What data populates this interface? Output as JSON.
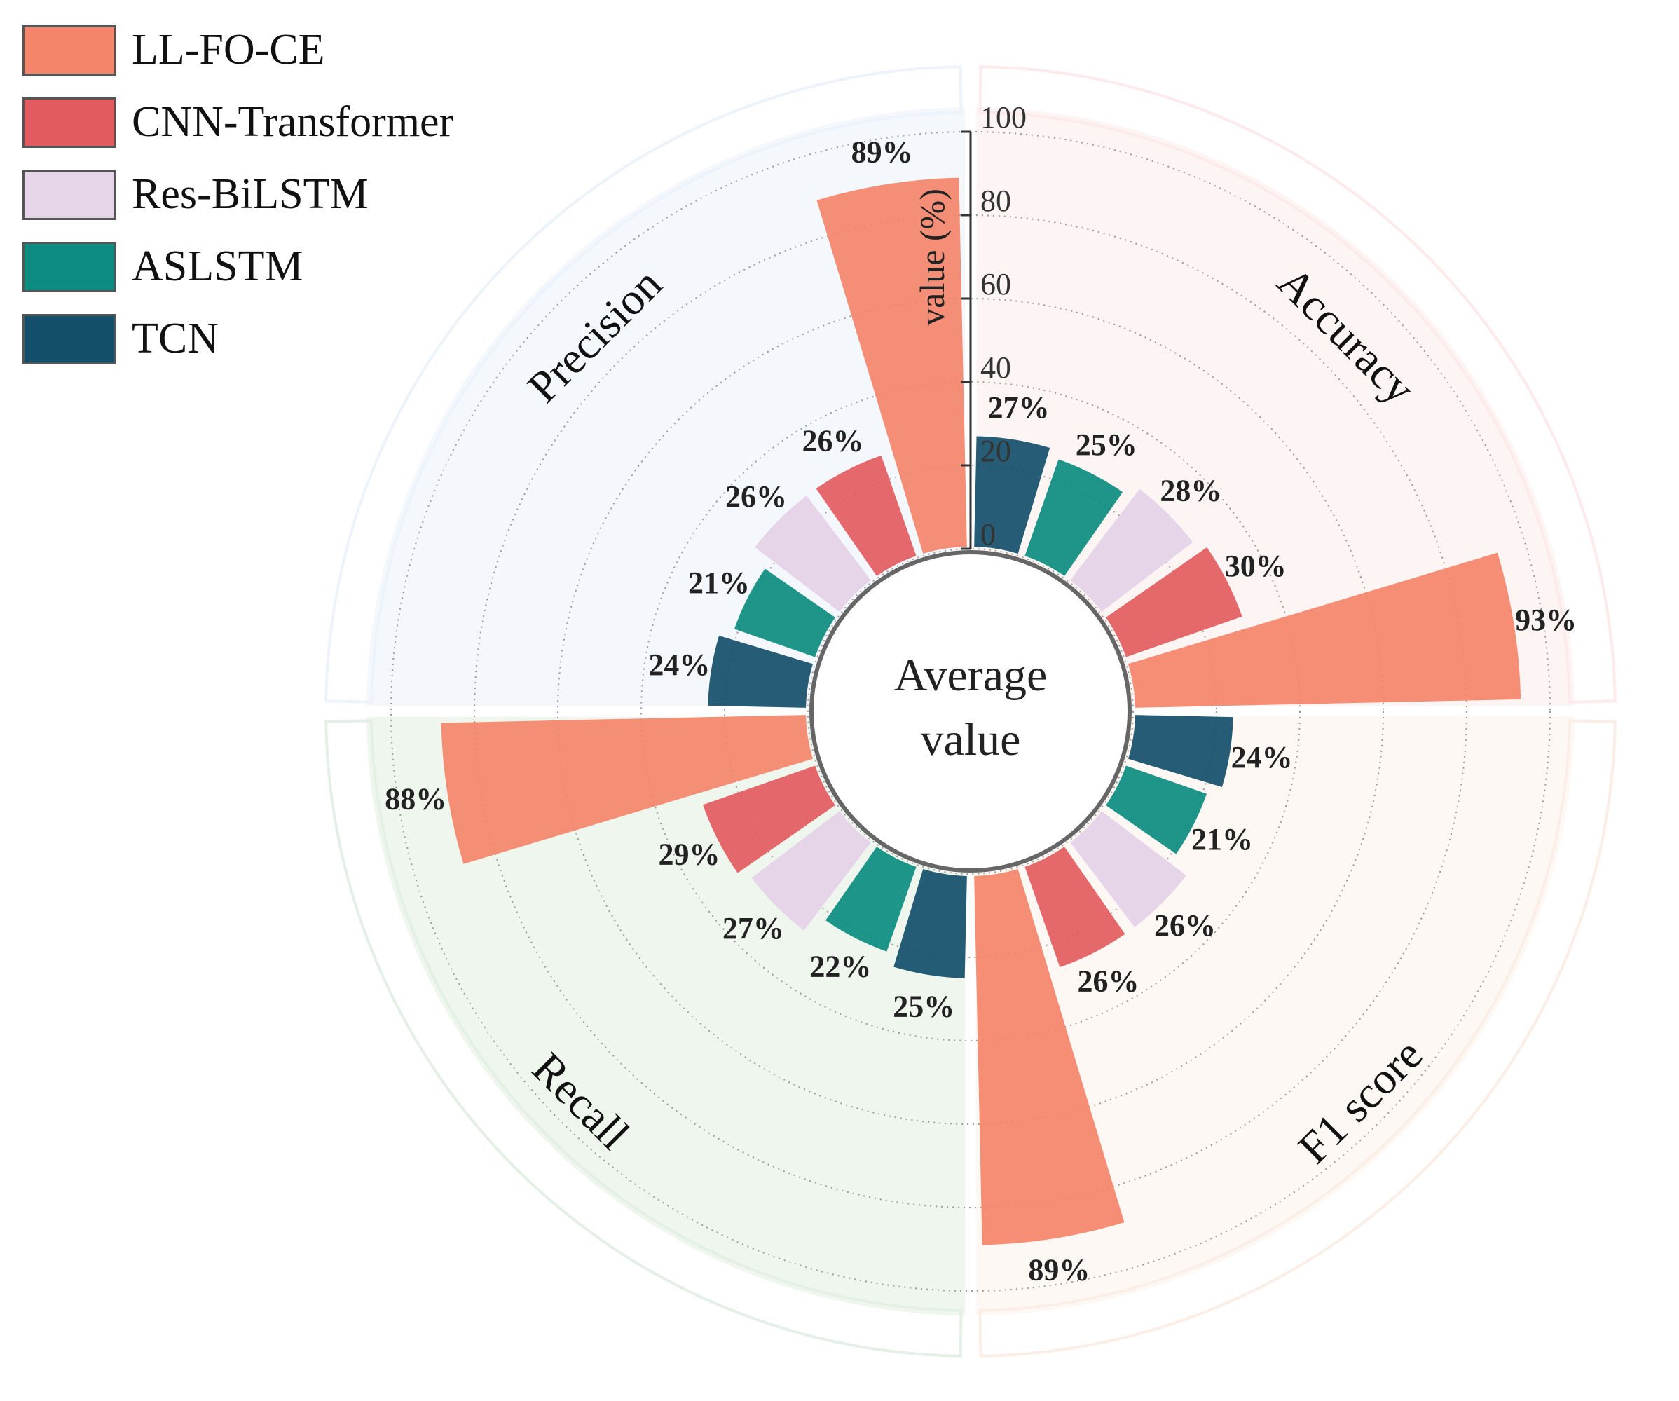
{
  "chart_data": {
    "type": "polar-bar",
    "center_label": [
      "Average",
      "value"
    ],
    "axis": {
      "label": "value (%)",
      "ticks": [
        0,
        20,
        40,
        60,
        80,
        100
      ],
      "range": [
        0,
        100
      ]
    },
    "series_names": [
      "LL-FO-CE",
      "CNN-Transformer",
      "Res-BiLSTM",
      "ASLSTM",
      "TCN"
    ],
    "colors": {
      "LL-FO-CE": "#f4846a",
      "CNN-Transformer": "#e35b5f",
      "Res-BiLSTM": "#e6d4e8",
      "ASLSTM": "#0c8c80",
      "TCN": "#134e6a"
    },
    "categories": [
      {
        "name": "Accuracy",
        "quadrant": "top-right",
        "band_color": "#fdeaea",
        "background": "#fdf5f3",
        "values": [
          {
            "series": "TCN",
            "value": 27
          },
          {
            "series": "ASLSTM",
            "value": 25
          },
          {
            "series": "Res-BiLSTM",
            "value": 28
          },
          {
            "series": "CNN-Transformer",
            "value": 30
          },
          {
            "series": "LL-FO-CE",
            "value": 93
          }
        ]
      },
      {
        "name": "F1 score",
        "quadrant": "bottom-right",
        "band_color": "#fbeee6",
        "background": "#fdf8f3",
        "values": [
          {
            "series": "TCN",
            "value": 24
          },
          {
            "series": "ASLSTM",
            "value": 21
          },
          {
            "series": "Res-BiLSTM",
            "value": 26
          },
          {
            "series": "CNN-Transformer",
            "value": 26
          },
          {
            "series": "LL-FO-CE",
            "value": 89
          }
        ]
      },
      {
        "name": "Recall",
        "quadrant": "bottom-left",
        "band_color": "#e4efe6",
        "background": "#eff6ee",
        "values": [
          {
            "series": "TCN",
            "value": 25
          },
          {
            "series": "ASLSTM",
            "value": 22
          },
          {
            "series": "Res-BiLSTM",
            "value": 27
          },
          {
            "series": "CNN-Transformer",
            "value": 29
          },
          {
            "series": "LL-FO-CE",
            "value": 88
          }
        ]
      },
      {
        "name": "Precision",
        "quadrant": "top-left",
        "band_color": "#edf3fa",
        "background": "#f4f7fc",
        "values": [
          {
            "series": "TCN",
            "value": 24
          },
          {
            "series": "ASLSTM",
            "value": 21
          },
          {
            "series": "Res-BiLSTM",
            "value": 26
          },
          {
            "series": "CNN-Transformer",
            "value": 26
          },
          {
            "series": "LL-FO-CE",
            "value": 89
          }
        ]
      }
    ],
    "legend": [
      "LL-FO-CE",
      "CNN-Transformer",
      "Res-BiLSTM",
      "ASLSTM",
      "TCN"
    ],
    "legend_position": "top-left",
    "value_suffix": "%",
    "grid": true
  }
}
